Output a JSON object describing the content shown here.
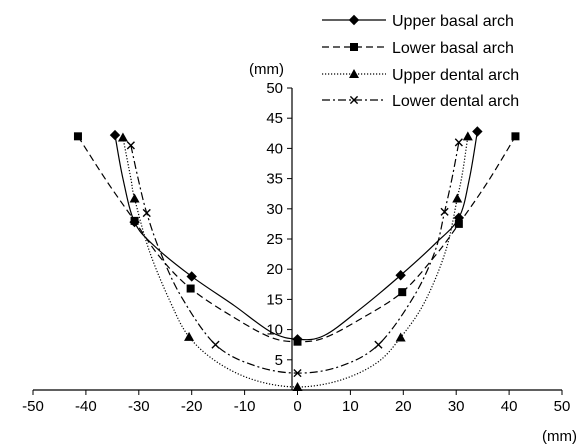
{
  "chart_data": {
    "type": "line",
    "title": "",
    "xlabel": "(mm)",
    "ylabel": "(mm)",
    "xlim": [
      -50,
      50
    ],
    "ylim": [
      0,
      50
    ],
    "xticks": [
      "-50",
      "-40",
      "-30",
      "-20",
      "-10",
      "0",
      "10",
      "20",
      "30",
      "40",
      "50"
    ],
    "yticks": [
      "5",
      "10",
      "15",
      "20",
      "25",
      "30",
      "35",
      "40",
      "45",
      "50"
    ],
    "grid": false,
    "legend_position": "top-right",
    "series": [
      {
        "name": "Upper basal arch",
        "marker": "diamond",
        "dash": "solid",
        "points": [
          [
            -34.5,
            42.2
          ],
          [
            -30.8,
            27.8
          ],
          [
            -20,
            18.8
          ],
          [
            0,
            8.4
          ],
          [
            19.5,
            19.0
          ],
          [
            30.5,
            28.5
          ],
          [
            34,
            42.8
          ]
        ],
        "curve": [
          [
            -34.5,
            42.2
          ],
          [
            -33,
            35
          ],
          [
            -30.8,
            27.8
          ],
          [
            -27,
            23.8
          ],
          [
            -20,
            18.8
          ],
          [
            -12,
            14
          ],
          [
            -5,
            9.6
          ],
          [
            0,
            8.4
          ],
          [
            5,
            9.0
          ],
          [
            12,
            13.5
          ],
          [
            19.5,
            19.0
          ],
          [
            26,
            24.2
          ],
          [
            30.5,
            28.5
          ],
          [
            32.5,
            35
          ],
          [
            34,
            42.8
          ]
        ]
      },
      {
        "name": "Lower basal arch",
        "marker": "square",
        "dash": "dashed",
        "points": [
          [
            -41.5,
            42.0
          ],
          [
            -30.8,
            28.0
          ],
          [
            -20.2,
            16.8
          ],
          [
            0,
            8.0
          ],
          [
            19.8,
            16.2
          ],
          [
            30.5,
            27.5
          ],
          [
            41.2,
            42.0
          ]
        ],
        "curve": [
          [
            -41.5,
            42.0
          ],
          [
            -36,
            34.5
          ],
          [
            -30.8,
            28.0
          ],
          [
            -26,
            22.0
          ],
          [
            -20.2,
            16.8
          ],
          [
            -12,
            12.0
          ],
          [
            -5,
            8.7
          ],
          [
            0,
            8.0
          ],
          [
            5,
            8.6
          ],
          [
            12,
            11.8
          ],
          [
            19.8,
            16.2
          ],
          [
            26,
            22.2
          ],
          [
            30.5,
            27.5
          ],
          [
            36,
            34.5
          ],
          [
            41.2,
            42.0
          ]
        ]
      },
      {
        "name": "Upper dental arch",
        "marker": "triangle",
        "dash": "dotted",
        "points": [
          [
            -33,
            41.8
          ],
          [
            -30.8,
            31.7
          ],
          [
            -20.5,
            8.8
          ],
          [
            0,
            0.5
          ],
          [
            19.5,
            8.7
          ],
          [
            30.2,
            31.7
          ],
          [
            32.2,
            42.0
          ]
        ],
        "curve": [
          [
            -33,
            41.8
          ],
          [
            -31.5,
            35
          ],
          [
            -30.8,
            31.7
          ],
          [
            -28,
            23
          ],
          [
            -24,
            14.5
          ],
          [
            -20.5,
            8.8
          ],
          [
            -15,
            4.5
          ],
          [
            -8,
            1.6
          ],
          [
            0,
            0.5
          ],
          [
            8,
            1.6
          ],
          [
            15,
            4.5
          ],
          [
            19.5,
            8.7
          ],
          [
            24,
            14.5
          ],
          [
            28,
            23
          ],
          [
            30.2,
            31.7
          ],
          [
            31.2,
            36
          ],
          [
            32.2,
            42.0
          ]
        ]
      },
      {
        "name": "Lower dental arch",
        "marker": "x",
        "dash": "dashdot",
        "points": [
          [
            -31.5,
            40.5
          ],
          [
            -28.5,
            29.3
          ],
          [
            -15.5,
            7.5
          ],
          [
            0,
            2.8
          ],
          [
            15.3,
            7.5
          ],
          [
            27.8,
            29.5
          ],
          [
            30.5,
            41.0
          ]
        ],
        "curve": [
          [
            -31.5,
            40.5
          ],
          [
            -30,
            34.5
          ],
          [
            -28.5,
            29.3
          ],
          [
            -26,
            23
          ],
          [
            -22,
            15.5
          ],
          [
            -15.5,
            7.5
          ],
          [
            -8,
            4.0
          ],
          [
            0,
            2.8
          ],
          [
            8,
            3.9
          ],
          [
            15.3,
            7.5
          ],
          [
            22,
            15.5
          ],
          [
            26,
            23
          ],
          [
            27.8,
            29.5
          ],
          [
            29.2,
            35
          ],
          [
            30.5,
            41.0
          ]
        ]
      }
    ]
  }
}
